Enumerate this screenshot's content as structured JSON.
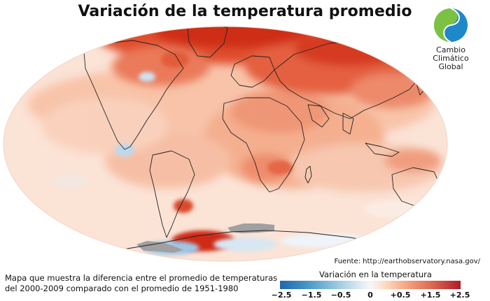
{
  "header": {
    "title": "Variación de la temperatura promedio"
  },
  "logo": {
    "text_line1": "Cambio Climático",
    "text_line2": "Global",
    "colors": {
      "green": "#7cc242",
      "blue": "#1e88c8",
      "dark_blue": "#0f5c9a"
    }
  },
  "map": {
    "projection": "Mollweide",
    "ocean_land_base_color": "#fde4d7",
    "warming_color_strong": "#c81e12",
    "cooling_color": "#9fc6e6",
    "no_data_color": "#a0a0a0"
  },
  "source": "Fuente: http://earthobservatory.nasa.gov/",
  "caption": {
    "line1": "Mapa que muestra la diferencia entre el promedio de temperaturas",
    "line2": "del 2000-2009 comparado con el promedio de 1951-1980"
  },
  "legend": {
    "title": "Variación en la temperatura",
    "ticks": [
      "−2.5",
      "−1.5",
      "−0.5",
      "0",
      "+0.5",
      "+1.5",
      "+2.5"
    ],
    "colors": {
      "min": "#2166ac",
      "mid": "#f7f7f7",
      "max": "#b2182b"
    }
  }
}
